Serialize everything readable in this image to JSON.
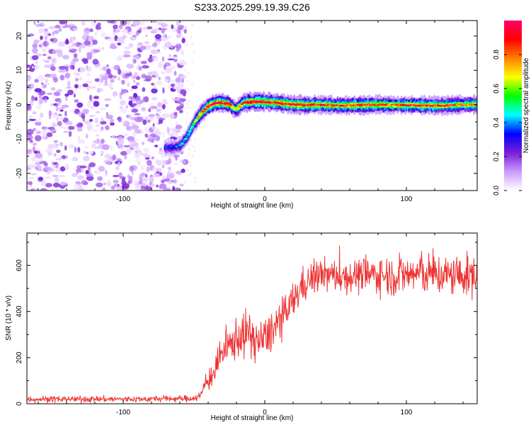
{
  "figure": {
    "title": "S233.2025.299.19.39.C26"
  },
  "chart_data": [
    {
      "type": "heatmap",
      "title": "S233.2025.299.19.39.C26",
      "xlabel": "Height of straight line (km)",
      "ylabel": "Frequency (Hz)",
      "xlim": [
        -168,
        150
      ],
      "ylim": [
        -25,
        24.5
      ],
      "xticks": [
        -100,
        0,
        100
      ],
      "xtick_labels": [
        "-100",
        "0",
        "100"
      ],
      "yticks": [
        -20,
        -10,
        0,
        10,
        20
      ],
      "ytick_labels": [
        "-20",
        "-10",
        "0",
        "10",
        "20"
      ],
      "noise_region_x": [
        -168,
        -56
      ],
      "ridge": {
        "x": [
          -70,
          -65,
          -60,
          -55,
          -50,
          -45,
          -40,
          -35,
          -30,
          -25,
          -22,
          -20,
          -17,
          -15,
          -10,
          -5,
          0,
          10,
          20,
          30,
          40,
          50,
          60,
          70,
          80,
          90,
          100,
          110,
          120,
          130,
          140,
          150
        ],
        "frequency_hz": [
          -12.5,
          -12.5,
          -12.0,
          -9.5,
          -5.5,
          -2.5,
          -0.5,
          0.5,
          0.5,
          0.2,
          -1.0,
          -1.5,
          -0.2,
          0.5,
          0.8,
          0.9,
          0.8,
          0.5,
          0.0,
          -0.1,
          0.0,
          -0.2,
          -0.2,
          -0.1,
          0.0,
          -0.1,
          -0.1,
          -0.2,
          -0.3,
          -0.2,
          0.0,
          0.0
        ],
        "amplitude": [
          0.35,
          0.35,
          0.4,
          0.45,
          0.55,
          0.75,
          0.9,
          0.95,
          0.95,
          0.9,
          0.7,
          0.65,
          0.8,
          0.9,
          0.95,
          0.95,
          0.95,
          0.9,
          0.9,
          0.9,
          0.85,
          0.85,
          0.85,
          0.85,
          0.85,
          0.8,
          0.85,
          0.85,
          0.85,
          0.8,
          0.8,
          0.8
        ]
      },
      "colorbar": {
        "label": "Normalized spectral amplitude",
        "range": [
          0,
          1
        ],
        "ticks": [
          0.0,
          0.2,
          0.4,
          0.6,
          0.8
        ],
        "tick_labels": [
          "0.0",
          "0.2",
          "0.4",
          "0.6",
          "0.8"
        ],
        "colors": [
          "#ffffff",
          "#cc99ff",
          "#7a1fd6",
          "#0000ff",
          "#00ffff",
          "#00ff00",
          "#ffff00",
          "#ff7f00",
          "#ff0000",
          "#ff0066"
        ]
      }
    },
    {
      "type": "line",
      "xlabel": "Height of straight line (km)",
      "ylabel": "SNR (10 * v/v)",
      "xlim": [
        -168,
        150
      ],
      "ylim": [
        0,
        740
      ],
      "xticks": [
        -100,
        0,
        100
      ],
      "xtick_labels": [
        "-100",
        "0",
        "100"
      ],
      "yticks": [
        0,
        200,
        400,
        600
      ],
      "ytick_labels": [
        "0",
        "200",
        "400",
        "600"
      ],
      "color": "#ee3333",
      "series": [
        {
          "name": "SNR",
          "x": [
            -168,
            -150,
            -130,
            -110,
            -90,
            -70,
            -55,
            -50,
            -45,
            -43,
            -40,
            -35,
            -30,
            -25,
            -20,
            -15,
            -10,
            -5,
            0,
            5,
            10,
            15,
            20,
            25,
            30,
            35,
            40,
            50,
            60,
            70,
            80,
            90,
            100,
            110,
            120,
            130,
            140,
            150
          ],
          "values": [
            20,
            20,
            20,
            20,
            20,
            22,
            22,
            25,
            35,
            75,
            100,
            150,
            220,
            250,
            285,
            300,
            300,
            270,
            280,
            320,
            350,
            390,
            445,
            500,
            530,
            550,
            560,
            555,
            550,
            560,
            560,
            555,
            560,
            565,
            560,
            555,
            555,
            550
          ],
          "noise_amplitude": [
            15,
            15,
            15,
            15,
            15,
            15,
            15,
            15,
            25,
            40,
            50,
            70,
            80,
            90,
            100,
            110,
            110,
            100,
            100,
            100,
            100,
            95,
            90,
            85,
            80,
            80,
            80,
            80,
            80,
            85,
            90,
            95,
            100,
            100,
            100,
            100,
            100,
            100
          ]
        }
      ]
    }
  ]
}
